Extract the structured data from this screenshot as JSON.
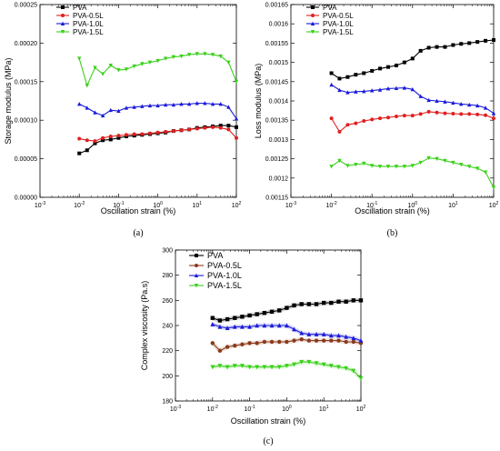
{
  "chart_data": [
    {
      "id": "a",
      "type": "line",
      "panel_label": "(a)",
      "xlabel": "Oscillation strain (%)",
      "ylabel": "Storage modulus (MPa)",
      "x_scale": "log",
      "xlim": [
        0.001,
        100
      ],
      "ylim": [
        0,
        0.00025
      ],
      "xticks": [
        {
          "value": 0.001,
          "base": "10",
          "exp": "-3"
        },
        {
          "value": 0.01,
          "base": "10",
          "exp": "-2"
        },
        {
          "value": 0.1,
          "base": "10",
          "exp": "-1"
        },
        {
          "value": 1,
          "base": "10",
          "exp": "0"
        },
        {
          "value": 10,
          "base": "10",
          "exp": "1"
        },
        {
          "value": 100,
          "base": "10",
          "exp": "2"
        }
      ],
      "yticks": [
        {
          "value": 0,
          "label": "0.00000"
        },
        {
          "value": 5e-05,
          "label": "0.00005"
        },
        {
          "value": 0.0001,
          "label": "0.00010"
        },
        {
          "value": 0.00015,
          "label": "0.00015"
        },
        {
          "value": 0.0002,
          "label": "0.00020"
        },
        {
          "value": 0.00025,
          "label": "0.00025"
        }
      ],
      "legend_position": "top-left",
      "x": [
        0.01,
        0.0158,
        0.0251,
        0.0398,
        0.0631,
        0.1,
        0.158,
        0.251,
        0.398,
        0.631,
        1,
        1.58,
        2.51,
        3.98,
        6.31,
        10,
        15.8,
        25.1,
        39.8,
        63.1,
        100
      ],
      "series": [
        {
          "name": "PVA",
          "color": "#000000",
          "marker": "square",
          "values": [
            5.7e-05,
            6.1e-05,
            7e-05,
            7.4e-05,
            7.5e-05,
            7.7e-05,
            7.9e-05,
            8e-05,
            8.1e-05,
            8.2e-05,
            8.3e-05,
            8.4e-05,
            8.6e-05,
            8.7e-05,
            8.8e-05,
            9e-05,
            9.1e-05,
            9.2e-05,
            9.3e-05,
            9.3e-05,
            9.1e-05
          ]
        },
        {
          "name": "PVA-0.5L",
          "color": "#e02020",
          "marker": "circle",
          "values": [
            7.6e-05,
            7.4e-05,
            7.3e-05,
            7.7e-05,
            7.9e-05,
            8e-05,
            8.1e-05,
            8.2e-05,
            8.2e-05,
            8.3e-05,
            8.4e-05,
            8.5e-05,
            8.6e-05,
            8.7e-05,
            8.8e-05,
            8.9e-05,
            9e-05,
            9.1e-05,
            9e-05,
            8.8e-05,
            7.7e-05
          ]
        },
        {
          "name": "PVA-1.0L",
          "color": "#1a1ad8",
          "marker": "triangle-up",
          "values": [
            0.000121,
            0.000116,
            0.00011,
            0.000106,
            0.000113,
            0.000112,
            0.000116,
            0.000117,
            0.000118,
            0.000119,
            0.000119,
            0.00012,
            0.00012,
            0.000121,
            0.000121,
            0.000122,
            0.000122,
            0.000121,
            0.000121,
            0.000117,
            0.000102
          ]
        },
        {
          "name": "PVA-1.5L",
          "color": "#3ad11a",
          "marker": "triangle-down",
          "values": [
            0.00018,
            0.000145,
            0.000168,
            0.00016,
            0.000171,
            0.000165,
            0.000166,
            0.00017,
            0.000173,
            0.000175,
            0.000177,
            0.00018,
            0.000182,
            0.000183,
            0.000185,
            0.000186,
            0.000186,
            0.000185,
            0.000183,
            0.000175,
            0.00015
          ]
        }
      ]
    },
    {
      "id": "b",
      "type": "line",
      "panel_label": "(b)",
      "xlabel": "Oscillation strain (%)",
      "ylabel": "Loss modulus (MPa)",
      "x_scale": "log",
      "xlim": [
        0.001,
        100
      ],
      "ylim": [
        0.00115,
        0.00165
      ],
      "xticks": [
        {
          "value": 0.001,
          "base": "10",
          "exp": "-3"
        },
        {
          "value": 0.01,
          "base": "10",
          "exp": "-2"
        },
        {
          "value": 0.1,
          "base": "10",
          "exp": "-1"
        },
        {
          "value": 1,
          "base": "10",
          "exp": "0"
        },
        {
          "value": 10,
          "base": "10",
          "exp": "1"
        },
        {
          "value": 100,
          "base": "10",
          "exp": "2"
        }
      ],
      "yticks": [
        {
          "value": 0.00115,
          "label": "0.00115"
        },
        {
          "value": 0.0012,
          "label": "0.0012"
        },
        {
          "value": 0.00125,
          "label": "0.00125"
        },
        {
          "value": 0.0013,
          "label": "0.0013"
        },
        {
          "value": 0.00135,
          "label": "0.00135"
        },
        {
          "value": 0.0014,
          "label": "0.0014"
        },
        {
          "value": 0.00145,
          "label": "0.00145"
        },
        {
          "value": 0.0015,
          "label": "0.0015"
        },
        {
          "value": 0.00155,
          "label": "0.00155"
        },
        {
          "value": 0.0016,
          "label": "0.0016"
        },
        {
          "value": 0.00165,
          "label": "0.00165"
        }
      ],
      "legend_position": "top-left",
      "x": [
        0.01,
        0.0158,
        0.0251,
        0.0398,
        0.0631,
        0.1,
        0.158,
        0.251,
        0.398,
        0.631,
        1,
        1.58,
        2.51,
        3.98,
        6.31,
        10,
        15.8,
        25.1,
        39.8,
        63.1,
        100
      ],
      "series": [
        {
          "name": "PVA",
          "color": "#000000",
          "marker": "square",
          "values": [
            0.001472,
            0.001458,
            0.001462,
            0.001468,
            0.001472,
            0.001478,
            0.001484,
            0.001488,
            0.001492,
            0.0015,
            0.00151,
            0.00153,
            0.001538,
            0.00154,
            0.00154,
            0.001545,
            0.001548,
            0.00155,
            0.001553,
            0.001556,
            0.001558
          ]
        },
        {
          "name": "PVA-0.5L",
          "color": "#e02020",
          "marker": "circle",
          "values": [
            0.001355,
            0.00132,
            0.001338,
            0.001342,
            0.001348,
            0.001352,
            0.001355,
            0.001357,
            0.00136,
            0.001362,
            0.001362,
            0.001366,
            0.001372,
            0.00137,
            0.001368,
            0.001367,
            0.001366,
            0.001366,
            0.001365,
            0.001363,
            0.001355
          ]
        },
        {
          "name": "PVA-1.0L",
          "color": "#1a1ad8",
          "marker": "triangle-up",
          "values": [
            0.001442,
            0.001428,
            0.001422,
            0.001424,
            0.001425,
            0.001427,
            0.001429,
            0.001432,
            0.001433,
            0.001434,
            0.00143,
            0.001412,
            0.001402,
            0.0014,
            0.001398,
            0.001395,
            0.001392,
            0.00139,
            0.001388,
            0.001382,
            0.001368
          ]
        },
        {
          "name": "PVA-1.5L",
          "color": "#3ad11a",
          "marker": "triangle-down",
          "values": [
            0.00123,
            0.001245,
            0.001232,
            0.001235,
            0.001238,
            0.001232,
            0.00123,
            0.00123,
            0.00123,
            0.00123,
            0.001232,
            0.00124,
            0.001252,
            0.00125,
            0.001245,
            0.00124,
            0.001235,
            0.00123,
            0.001225,
            0.001215,
            0.001175
          ]
        }
      ]
    },
    {
      "id": "c",
      "type": "line",
      "panel_label": "(c)",
      "xlabel": "Oscillation strain (%)",
      "ylabel": "Complex viscosity (Pa.s)",
      "x_scale": "log",
      "xlim": [
        0.001,
        100
      ],
      "ylim": [
        180,
        300
      ],
      "xticks": [
        {
          "value": 0.001,
          "base": "10",
          "exp": "-3"
        },
        {
          "value": 0.01,
          "base": "10",
          "exp": "-2"
        },
        {
          "value": 0.1,
          "base": "10",
          "exp": "-1"
        },
        {
          "value": 1,
          "base": "10",
          "exp": "0"
        },
        {
          "value": 10,
          "base": "10",
          "exp": "1"
        },
        {
          "value": 100,
          "base": "10",
          "exp": "2"
        }
      ],
      "yticks": [
        {
          "value": 180,
          "label": "180"
        },
        {
          "value": 200,
          "label": "200"
        },
        {
          "value": 220,
          "label": "220"
        },
        {
          "value": 240,
          "label": "240"
        },
        {
          "value": 260,
          "label": "260"
        },
        {
          "value": 280,
          "label": "280"
        },
        {
          "value": 300,
          "label": "300"
        }
      ],
      "legend_position": "top-left",
      "x": [
        0.01,
        0.0158,
        0.0251,
        0.0398,
        0.0631,
        0.1,
        0.158,
        0.251,
        0.398,
        0.631,
        1,
        1.58,
        2.51,
        3.98,
        6.31,
        10,
        15.8,
        25.1,
        39.8,
        63.1,
        100
      ],
      "series": [
        {
          "name": "PVA",
          "color": "#000000",
          "marker": "square",
          "values": [
            246,
            244,
            245,
            246,
            247,
            248,
            249,
            250,
            251,
            252,
            254,
            256,
            257,
            257,
            257,
            258,
            258,
            259,
            259,
            260,
            260
          ]
        },
        {
          "name": "PVA-0.5L",
          "color": "#8b3a1a",
          "marker": "circle",
          "values": [
            226,
            220,
            223,
            224,
            225,
            226,
            226,
            227,
            227,
            227,
            227,
            228,
            229,
            228,
            228,
            228,
            228,
            228,
            227,
            227,
            226
          ]
        },
        {
          "name": "PVA-1.0L",
          "color": "#1a1ad8",
          "marker": "triangle-up",
          "values": [
            241,
            239,
            238,
            239,
            239,
            239,
            240,
            240,
            240,
            240,
            240,
            237,
            234,
            233,
            233,
            233,
            232,
            232,
            231,
            230,
            228
          ]
        },
        {
          "name": "PVA-1.5L",
          "color": "#3ad11a",
          "marker": "triangle-down",
          "values": [
            207,
            208,
            207,
            208,
            208,
            207,
            207,
            207,
            207,
            207,
            208,
            209,
            211,
            211,
            210,
            209,
            208,
            207,
            206,
            204,
            198
          ]
        }
      ]
    }
  ]
}
